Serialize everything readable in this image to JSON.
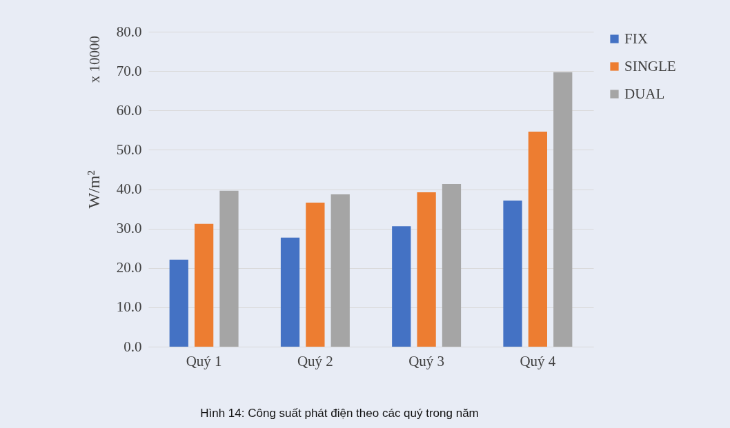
{
  "chart_data": {
    "type": "bar",
    "ylabel": "W/m²",
    "categories": [
      "Quý 1",
      "Quý 2",
      "Quý 3",
      "Quý 4"
    ],
    "series": [
      {
        "name": "FIX",
        "color": "#4472c4",
        "values": [
          22.1,
          27.7,
          30.6,
          37.1
        ]
      },
      {
        "name": "SINGLE",
        "color": "#ed7d31",
        "values": [
          31.2,
          36.6,
          39.2,
          54.6
        ]
      },
      {
        "name": "DUAL",
        "color": "#a5a5a5",
        "values": [
          39.6,
          38.7,
          41.3,
          69.7
        ]
      }
    ],
    "ylim": [
      0,
      80
    ],
    "yticks": [
      {
        "value": 0,
        "label": "0.0"
      },
      {
        "value": 10,
        "label": "10.0"
      },
      {
        "value": 20,
        "label": "20.0"
      },
      {
        "value": 30,
        "label": "30.0"
      },
      {
        "value": 40,
        "label": "40.0"
      },
      {
        "value": 50,
        "label": "50.0"
      },
      {
        "value": 60,
        "label": "60.0"
      },
      {
        "value": 70,
        "label": "70.0"
      },
      {
        "value": 80,
        "label": "80.0"
      }
    ],
    "grid": "y",
    "legend": "right",
    "annotations": [
      "x 10000",
      "Hình 14: Công suất phát điện theo các quý trong năm"
    ]
  }
}
